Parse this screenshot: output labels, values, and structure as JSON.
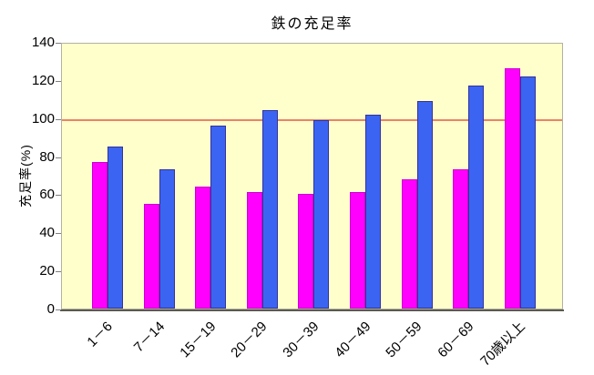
{
  "title": "鉄の充足率",
  "chart_data": {
    "type": "bar",
    "title": "鉄の充足率",
    "xlabel": "",
    "ylabel": "充足率(%)",
    "ylim": [
      0,
      140
    ],
    "yticks": [
      0,
      20,
      40,
      60,
      80,
      100,
      120,
      140
    ],
    "grid": false,
    "legend": "none",
    "plot_background": "#ffffcc",
    "categories": [
      "1－6",
      "7－14",
      "15－19",
      "20－29",
      "30－39",
      "40－49",
      "50－59",
      "60－69",
      "70歳以上"
    ],
    "series": [
      {
        "name": "magenta",
        "color": "#ff00ff",
        "values": [
          77,
          55,
          64,
          61,
          60,
          61,
          68,
          73,
          126
        ]
      },
      {
        "name": "blue",
        "color": "#3c64f2",
        "values": [
          85,
          73,
          96,
          104,
          99,
          102,
          109,
          117,
          122
        ]
      }
    ],
    "reference_line": {
      "value": 100,
      "color": "#e8846a"
    }
  }
}
